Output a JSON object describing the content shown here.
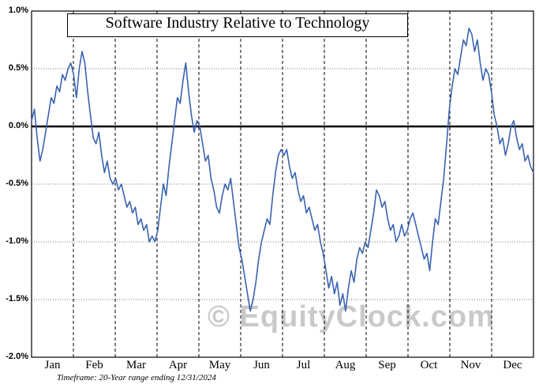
{
  "chart_data": {
    "type": "line",
    "title": "Software Industry Relative to Technology",
    "xlabel": "",
    "ylabel": "",
    "x_categories": [
      "Jan",
      "Feb",
      "Mar",
      "Apr",
      "May",
      "Jun",
      "Jul",
      "Aug",
      "Sep",
      "Oct",
      "Nov",
      "Dec"
    ],
    "y_tick_labels": [
      "1.0%",
      "0.5%",
      "0.0%",
      "-0.5%",
      "-1.0%",
      "-1.5%",
      "-2.0%"
    ],
    "ylim": [
      -2.0,
      1.0
    ],
    "unit": "percent",
    "line_color": "#3a63b0",
    "zero_line_color": "#000000",
    "grid": {
      "horizontal": "dotted at 0.5% steps",
      "vertical": "dashed at month boundaries",
      "zero_line": "solid bold"
    },
    "legend": "none",
    "series": [
      {
        "name": "Software Industry Relative to Technology (seasonal average)",
        "points_per_month": 15,
        "values": [
          0.05,
          0.15,
          -0.1,
          -0.3,
          -0.2,
          -0.05,
          0.1,
          0.25,
          0.2,
          0.35,
          0.3,
          0.45,
          0.4,
          0.5,
          0.55,
          0.45,
          0.25,
          0.5,
          0.65,
          0.55,
          0.3,
          0.1,
          -0.1,
          -0.15,
          -0.05,
          -0.25,
          -0.4,
          -0.3,
          -0.45,
          -0.5,
          -0.45,
          -0.55,
          -0.5,
          -0.6,
          -0.7,
          -0.65,
          -0.75,
          -0.7,
          -0.85,
          -0.8,
          -0.9,
          -0.85,
          -1.0,
          -0.95,
          -1.0,
          -0.9,
          -0.7,
          -0.5,
          -0.6,
          -0.35,
          -0.15,
          0.05,
          0.25,
          0.2,
          0.4,
          0.55,
          0.3,
          0.1,
          -0.05,
          0.05,
          0.0,
          -0.15,
          -0.3,
          -0.25,
          -0.45,
          -0.55,
          -0.7,
          -0.75,
          -0.6,
          -0.5,
          -0.55,
          -0.45,
          -0.65,
          -0.85,
          -1.05,
          -1.15,
          -1.3,
          -1.45,
          -1.6,
          -1.5,
          -1.35,
          -1.15,
          -1.0,
          -0.9,
          -0.8,
          -0.85,
          -0.6,
          -0.4,
          -0.25,
          -0.2,
          -0.25,
          -0.2,
          -0.35,
          -0.45,
          -0.4,
          -0.55,
          -0.65,
          -0.6,
          -0.75,
          -0.7,
          -0.8,
          -0.9,
          -0.85,
          -1.0,
          -1.1,
          -1.25,
          -1.4,
          -1.3,
          -1.45,
          -1.35,
          -1.55,
          -1.45,
          -1.6,
          -1.4,
          -1.25,
          -1.35,
          -1.15,
          -1.05,
          -1.1,
          -1.0,
          -1.05,
          -0.9,
          -0.75,
          -0.55,
          -0.6,
          -0.7,
          -0.65,
          -0.8,
          -0.9,
          -0.85,
          -1.0,
          -0.95,
          -0.85,
          -0.95,
          -0.9,
          -0.8,
          -0.75,
          -0.85,
          -0.95,
          -1.05,
          -1.15,
          -1.1,
          -1.25,
          -1.0,
          -0.8,
          -0.85,
          -0.65,
          -0.45,
          -0.15,
          0.15,
          0.35,
          0.5,
          0.45,
          0.6,
          0.75,
          0.7,
          0.85,
          0.8,
          0.65,
          0.75,
          0.55,
          0.4,
          0.5,
          0.45,
          0.3,
          0.1,
          0.0,
          -0.15,
          -0.1,
          -0.25,
          -0.15,
          0.0,
          0.05,
          -0.1,
          -0.2,
          -0.15,
          -0.3,
          -0.25,
          -0.35,
          -0.4
        ]
      }
    ],
    "watermark": "© EquityClock.com",
    "footnote": "Timeframe: 20-Year range ending 12/31/2024"
  }
}
